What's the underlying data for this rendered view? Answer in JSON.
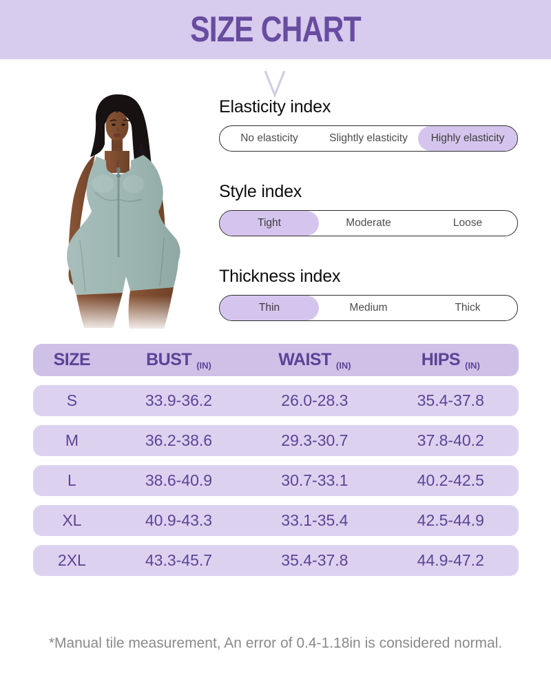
{
  "banner": {
    "title": "SIZE CHART"
  },
  "sections": [
    {
      "title": "Elasticity index",
      "options": [
        {
          "label": "No elasticity",
          "selected": false
        },
        {
          "label": "Slightly elasticity",
          "selected": false
        },
        {
          "label": "Highly elasticity",
          "selected": true
        }
      ]
    },
    {
      "title": "Style index",
      "options": [
        {
          "label": "Tight",
          "selected": true
        },
        {
          "label": "Moderate",
          "selected": false
        },
        {
          "label": "Loose",
          "selected": false
        }
      ]
    },
    {
      "title": "Thickness index",
      "options": [
        {
          "label": "Thin",
          "selected": true
        },
        {
          "label": "Medium",
          "selected": false
        },
        {
          "label": "Thick",
          "selected": false
        }
      ]
    }
  ],
  "size_table": {
    "columns": [
      {
        "label": "SIZE",
        "unit": ""
      },
      {
        "label": "BUST",
        "unit": "(IN)"
      },
      {
        "label": "WAIST",
        "unit": "(IN)"
      },
      {
        "label": "HIPS",
        "unit": "(IN)"
      }
    ],
    "rows": [
      [
        "S",
        "33.9-36.2",
        "26.0-28.3",
        "35.4-37.8"
      ],
      [
        "M",
        "36.2-38.6",
        "29.3-30.7",
        "37.8-40.2"
      ],
      [
        "L",
        "38.6-40.9",
        "30.7-33.1",
        "40.2-42.5"
      ],
      [
        "XL",
        "40.9-43.3",
        "33.1-35.4",
        "42.5-44.9"
      ],
      [
        "2XL",
        "43.3-45.7",
        "35.4-37.8",
        "44.9-47.2"
      ]
    ]
  },
  "footnote": "*Manual tile measurement, An error of 0.4-1.18in is considered normal.",
  "model_image": {
    "name": "model-photo",
    "garment": "zip-front romper"
  },
  "colors": {
    "banner_bg": "#d7cbee",
    "banner_text": "#684ca0",
    "selected_pill_bg": "#d5c5ee",
    "table_header_bg": "#cfc0e7",
    "table_row_bg": "#dcd2ef",
    "table_text": "#5a4497",
    "note_text": "#8a8a8a",
    "romper": "#9db6b2"
  },
  "section_tops": [
    140,
    263,
    386
  ]
}
